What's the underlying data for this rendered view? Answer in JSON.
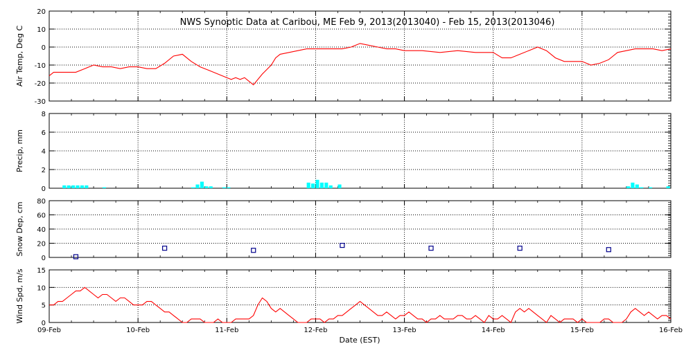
{
  "title": "NWS Synoptic Data at Caribou, ME   Feb  9, 2013(2013040) - Feb 15, 2013(2013046)",
  "x_axis_label": "Date (EST)",
  "x_tick_labels": [
    "09-Feb",
    "10-Feb",
    "11-Feb",
    "12-Feb",
    "13-Feb",
    "14-Feb",
    "15-Feb",
    "16-Feb"
  ],
  "chart_data": [
    {
      "type": "line",
      "name": "air-temp",
      "ylabel": "Air Temp, Deg C",
      "ylim": [
        -30,
        20
      ],
      "yticks": [
        -30,
        -20,
        -10,
        0,
        10,
        20
      ],
      "xlim": [
        0,
        7
      ],
      "grid": true,
      "color": "#ff0000",
      "x": [
        0,
        0.05,
        0.1,
        0.2,
        0.3,
        0.4,
        0.5,
        0.6,
        0.7,
        0.8,
        0.9,
        1.0,
        1.1,
        1.2,
        1.3,
        1.4,
        1.5,
        1.6,
        1.7,
        1.8,
        1.9,
        2.0,
        2.05,
        2.1,
        2.15,
        2.2,
        2.25,
        2.3,
        2.4,
        2.5,
        2.55,
        2.6,
        2.7,
        2.8,
        2.9,
        3.0,
        3.1,
        3.2,
        3.3,
        3.4,
        3.5,
        3.6,
        3.7,
        3.8,
        3.9,
        4.0,
        4.2,
        4.4,
        4.6,
        4.8,
        5.0,
        5.1,
        5.2,
        5.3,
        5.4,
        5.5,
        5.6,
        5.7,
        5.8,
        5.9,
        6.0,
        6.1,
        6.2,
        6.3,
        6.4,
        6.5,
        6.6,
        6.7,
        6.8,
        6.9,
        7.0
      ],
      "y": [
        -16,
        -14,
        -14,
        -14,
        -14,
        -12,
        -10,
        -11,
        -11,
        -12,
        -11,
        -11,
        -12,
        -12,
        -9,
        -5,
        -4,
        -8,
        -11,
        -13,
        -15,
        -17,
        -18,
        -17,
        -18,
        -17,
        -19,
        -21,
        -15,
        -10,
        -6,
        -4,
        -3,
        -2,
        -1,
        -1,
        -1,
        -1,
        -1,
        0,
        2,
        1,
        0,
        -1,
        -1,
        -2,
        -2,
        -3,
        -2,
        -3,
        -3,
        -6,
        -6,
        -4,
        -2,
        0,
        -2,
        -6,
        -8,
        -8,
        -8,
        -10,
        -9,
        -7,
        -3,
        -2,
        -1,
        -1,
        -1,
        -2,
        -1
      ]
    },
    {
      "type": "bar",
      "name": "precip",
      "ylabel": "Precip, mm",
      "ylim": [
        0,
        8
      ],
      "yticks": [
        0,
        2,
        4,
        6,
        8
      ],
      "xlim": [
        0,
        7
      ],
      "grid": true,
      "color": "#00ffff",
      "bar_width_days": 0.04,
      "x": [
        0.15,
        0.2,
        0.25,
        0.3,
        0.35,
        0.4,
        0.6,
        1.6,
        1.65,
        1.7,
        1.75,
        1.8,
        1.95,
        2.0,
        2.9,
        2.95,
        3.0,
        3.05,
        3.1,
        3.15,
        3.25,
        6.5,
        6.55,
        6.6,
        6.65,
        6.75,
        6.95
      ],
      "values": [
        0.3,
        0.3,
        0.3,
        0.3,
        0.3,
        0.3,
        0.1,
        0.1,
        0.4,
        0.7,
        0.2,
        0.2,
        0.1,
        0.1,
        0.6,
        0.5,
        0.9,
        0.6,
        0.6,
        0.3,
        0.4,
        0.2,
        0.6,
        0.4,
        0.1,
        0.1,
        0.2
      ]
    },
    {
      "type": "scatter",
      "name": "snow-depth",
      "ylabel": "Snow Dep, cm",
      "ylim": [
        0,
        80
      ],
      "yticks": [
        0,
        20,
        40,
        60,
        80
      ],
      "xlim": [
        0,
        7
      ],
      "grid": true,
      "color": "#00008b",
      "marker": "open-square",
      "x": [
        0.3,
        1.3,
        2.3,
        3.3,
        4.3,
        5.3,
        6.3
      ],
      "y": [
        1,
        13,
        10,
        17,
        13,
        13,
        11
      ]
    },
    {
      "type": "line",
      "name": "wind-speed",
      "ylabel": "Wind Spd, m/s",
      "ylim": [
        0,
        15
      ],
      "yticks": [
        0,
        5,
        10,
        15
      ],
      "xlim": [
        0,
        7
      ],
      "grid": true,
      "color": "#ff0000",
      "x": [
        0,
        0.05,
        0.1,
        0.15,
        0.2,
        0.25,
        0.3,
        0.35,
        0.4,
        0.45,
        0.5,
        0.55,
        0.6,
        0.65,
        0.7,
        0.75,
        0.8,
        0.85,
        0.9,
        0.95,
        1.0,
        1.05,
        1.1,
        1.15,
        1.2,
        1.25,
        1.3,
        1.35,
        1.4,
        1.45,
        1.5,
        1.55,
        1.6,
        1.65,
        1.7,
        1.75,
        1.8,
        1.85,
        1.9,
        1.95,
        2.0,
        2.05,
        2.1,
        2.15,
        2.2,
        2.25,
        2.3,
        2.35,
        2.4,
        2.45,
        2.5,
        2.55,
        2.6,
        2.65,
        2.7,
        2.75,
        2.8,
        2.85,
        2.9,
        2.95,
        3.0,
        3.05,
        3.1,
        3.15,
        3.2,
        3.25,
        3.3,
        3.35,
        3.4,
        3.45,
        3.5,
        3.55,
        3.6,
        3.65,
        3.7,
        3.75,
        3.8,
        3.85,
        3.9,
        3.95,
        4.0,
        4.05,
        4.1,
        4.15,
        4.2,
        4.25,
        4.3,
        4.35,
        4.4,
        4.45,
        4.5,
        4.55,
        4.6,
        4.65,
        4.7,
        4.75,
        4.8,
        4.85,
        4.9,
        4.95,
        5.0,
        5.05,
        5.1,
        5.15,
        5.2,
        5.25,
        5.3,
        5.35,
        5.4,
        5.45,
        5.5,
        5.55,
        5.6,
        5.65,
        5.7,
        5.75,
        5.8,
        5.85,
        5.9,
        5.95,
        6.0,
        6.05,
        6.1,
        6.15,
        6.2,
        6.25,
        6.3,
        6.35,
        6.4,
        6.45,
        6.5,
        6.55,
        6.6,
        6.65,
        6.7,
        6.75,
        6.8,
        6.85,
        6.9,
        6.95,
        7.0
      ],
      "y": [
        5,
        5,
        6,
        6,
        7,
        8,
        9,
        9,
        10,
        9,
        8,
        7,
        8,
        8,
        7,
        6,
        7,
        7,
        6,
        5,
        5,
        5,
        6,
        6,
        5,
        4,
        3,
        3,
        2,
        1,
        0,
        0,
        1,
        1,
        1,
        0,
        0,
        0,
        1,
        0,
        0,
        0,
        1,
        1,
        1,
        1,
        2,
        5,
        7,
        6,
        4,
        3,
        4,
        3,
        2,
        1,
        0,
        0,
        0,
        1,
        1,
        1,
        0,
        1,
        1,
        2,
        2,
        3,
        4,
        5,
        6,
        5,
        4,
        3,
        2,
        2,
        3,
        2,
        1,
        2,
        2,
        3,
        2,
        1,
        1,
        0,
        1,
        1,
        2,
        1,
        1,
        1,
        2,
        2,
        1,
        1,
        2,
        1,
        0,
        2,
        1,
        1,
        2,
        1,
        0,
        3,
        4,
        3,
        4,
        3,
        2,
        1,
        0,
        2,
        1,
        0,
        1,
        1,
        1,
        0,
        1,
        0,
        0,
        0,
        0,
        1,
        1,
        0,
        0,
        0,
        1,
        3,
        4,
        3,
        2,
        3,
        2,
        1,
        2,
        2,
        1
      ]
    }
  ]
}
